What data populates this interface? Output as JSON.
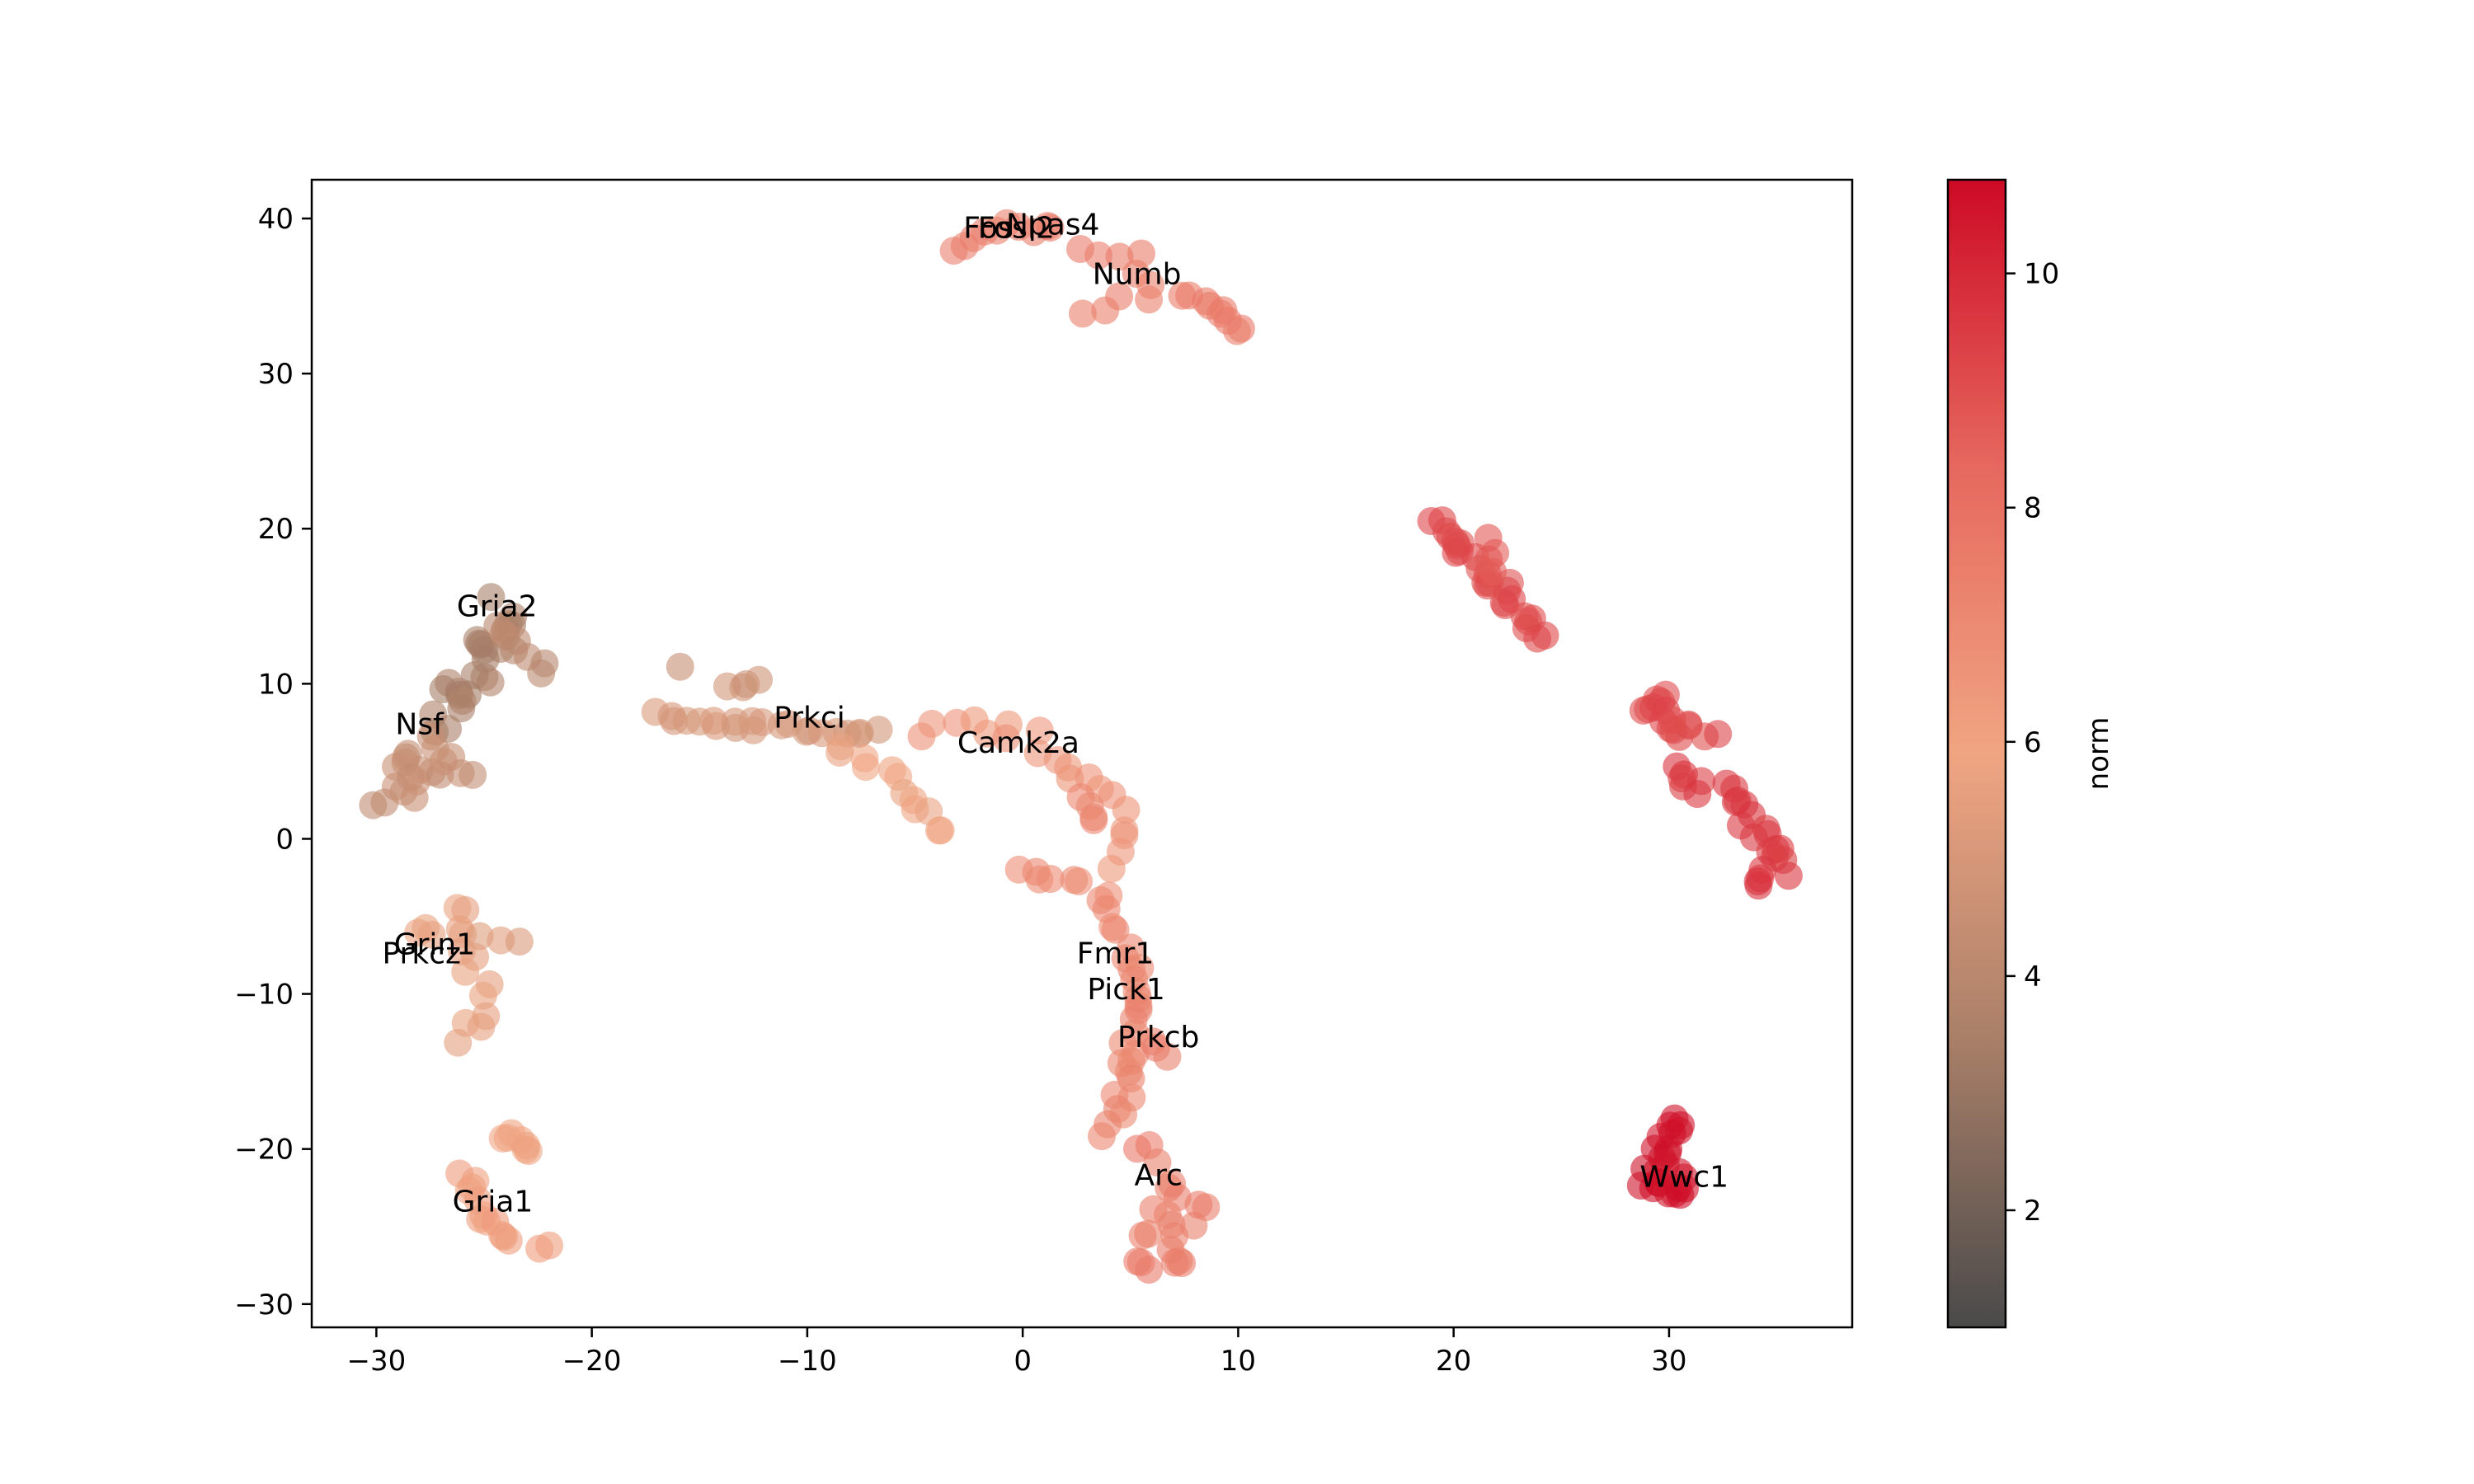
{
  "chart_data": {
    "type": "scatter",
    "title": "",
    "xlabel": "",
    "ylabel": "",
    "xlim": [
      -33,
      38.5
    ],
    "ylim": [
      -31.5,
      42.5
    ],
    "xticks": [
      -30,
      -20,
      -10,
      0,
      10,
      20,
      30
    ],
    "yticks": [
      -30,
      -20,
      -10,
      0,
      10,
      20,
      30,
      40
    ],
    "xtick_labels": [
      "−30",
      "−20",
      "−10",
      "0",
      "10",
      "20",
      "30"
    ],
    "ytick_labels": [
      "−30",
      "−20",
      "−10",
      "0",
      "10",
      "20",
      "30",
      "40"
    ],
    "grid": false,
    "colorbar": {
      "label": "norm",
      "range": [
        1.0,
        10.8
      ],
      "ticks": [
        2,
        4,
        6,
        8,
        10
      ],
      "tick_labels": [
        "2",
        "4",
        "6",
        "8",
        "10"
      ],
      "colormap": [
        "#4a4a4a",
        "#a97f68",
        "#f0a582",
        "#e6685e",
        "#cd0a25"
      ]
    },
    "point_alpha": 0.6,
    "annotations": [
      {
        "text": "Fosl2",
        "x": -0.3,
        "y": 39.4
      },
      {
        "text": "Fos",
        "x": -1.6,
        "y": 39.4
      },
      {
        "text": "Npas4",
        "x": 1.4,
        "y": 39.6
      },
      {
        "text": "Numb",
        "x": 5.3,
        "y": 36.4
      },
      {
        "text": "Gria2",
        "x": -24.4,
        "y": 15.0
      },
      {
        "text": "Nsf",
        "x": -28.0,
        "y": 7.4
      },
      {
        "text": "Prkci",
        "x": -9.9,
        "y": 7.8
      },
      {
        "text": "Camk2a",
        "x": -0.2,
        "y": 6.2
      },
      {
        "text": "Grin1",
        "x": -27.3,
        "y": -6.8
      },
      {
        "text": "Prkcz",
        "x": -27.9,
        "y": -7.4
      },
      {
        "text": "Fmr1",
        "x": 4.3,
        "y": -7.4
      },
      {
        "text": "Pick1",
        "x": 4.8,
        "y": -9.7
      },
      {
        "text": "Prkcb",
        "x": 6.3,
        "y": -12.8
      },
      {
        "text": "Arc",
        "x": 6.3,
        "y": -21.7
      },
      {
        "text": "Gria1",
        "x": -24.6,
        "y": -23.4
      },
      {
        "text": "Wwc1",
        "x": 30.7,
        "y": -21.8
      }
    ],
    "segments": [
      {
        "norm": 7.5,
        "n": 10,
        "jitter": 0.5,
        "path": [
          [
            -2.7,
            37.5
          ],
          [
            -1.5,
            39.5
          ],
          [
            0.5,
            39.5
          ],
          [
            1.2,
            39.0
          ]
        ]
      },
      {
        "norm": 7.5,
        "n": 10,
        "jitter": 0.5,
        "path": [
          [
            2.8,
            38.2
          ],
          [
            5.5,
            37.5
          ],
          [
            6.0,
            35.5
          ],
          [
            3.0,
            34.0
          ]
        ]
      },
      {
        "norm": 7.6,
        "n": 9,
        "jitter": 0.3,
        "path": [
          [
            7.5,
            35.0
          ],
          [
            9.0,
            34.2
          ],
          [
            10.2,
            32.8
          ]
        ]
      },
      {
        "norm": 3.5,
        "n": 24,
        "jitter": 0.8,
        "path": [
          [
            -24.0,
            14.8
          ],
          [
            -24.8,
            11.5
          ],
          [
            -26.0,
            9.5
          ],
          [
            -27.3,
            7.0
          ]
        ]
      },
      {
        "norm": 4.0,
        "n": 8,
        "jitter": 0.5,
        "path": [
          [
            -24.5,
            13.5
          ],
          [
            -23.3,
            12.0
          ],
          [
            -22.3,
            11.0
          ]
        ]
      },
      {
        "norm": 4.4,
        "n": 20,
        "jitter": 0.8,
        "path": [
          [
            -27.5,
            6.5
          ],
          [
            -28.5,
            4.0
          ],
          [
            -29.5,
            2.7
          ],
          [
            -26.5,
            4.5
          ],
          [
            -25.0,
            4.8
          ]
        ]
      },
      {
        "norm": 4.8,
        "n": 4,
        "jitter": 0.3,
        "path": [
          [
            -13.8,
            9.8
          ],
          [
            -12.2,
            10.5
          ]
        ]
      },
      {
        "norm": 4.3,
        "n": 1,
        "jitter": 0.0,
        "path": [
          [
            -15.9,
            11.1
          ]
        ]
      },
      {
        "norm": 4.9,
        "n": 22,
        "jitter": 0.4,
        "path": [
          [
            -17.0,
            7.9
          ],
          [
            -14.5,
            7.3
          ],
          [
            -12.0,
            7.2
          ],
          [
            -9.0,
            7.0
          ],
          [
            -7.0,
            7.3
          ]
        ]
      },
      {
        "norm": 5.8,
        "n": 12,
        "jitter": 0.4,
        "path": [
          [
            -8.8,
            5.8
          ],
          [
            -6.5,
            4.5
          ],
          [
            -5.0,
            2.5
          ],
          [
            -3.8,
            0.3
          ]
        ]
      },
      {
        "norm": 6.6,
        "n": 20,
        "jitter": 0.5,
        "path": [
          [
            -5.0,
            7.0
          ],
          [
            -2.5,
            7.3
          ],
          [
            0.5,
            6.5
          ],
          [
            2.5,
            4.5
          ],
          [
            4.3,
            2.0
          ],
          [
            4.5,
            0.0
          ],
          [
            4.5,
            -1.5
          ]
        ]
      },
      {
        "norm": 7.0,
        "n": 12,
        "jitter": 0.6,
        "path": [
          [
            0.0,
            -1.8
          ],
          [
            2.0,
            -3.0
          ],
          [
            3.8,
            -3.5
          ],
          [
            4.2,
            -5.0
          ],
          [
            4.8,
            -7.0
          ]
        ]
      },
      {
        "norm": 7.1,
        "n": 4,
        "jitter": 0.3,
        "path": [
          [
            2.5,
            2.5
          ],
          [
            3.5,
            1.0
          ]
        ]
      },
      {
        "norm": 5.6,
        "n": 16,
        "jitter": 0.7,
        "path": [
          [
            -28.5,
            -6.0
          ],
          [
            -26.5,
            -4.5
          ],
          [
            -25.7,
            -8.0
          ],
          [
            -25.0,
            -11.0
          ],
          [
            -26.0,
            -13.0
          ]
        ]
      },
      {
        "norm": 5.3,
        "n": 3,
        "jitter": 0.3,
        "path": [
          [
            -25.0,
            -6.0
          ],
          [
            -23.3,
            -6.6
          ]
        ]
      },
      {
        "norm": 5.9,
        "n": 7,
        "jitter": 0.4,
        "path": [
          [
            -24.0,
            -18.8
          ],
          [
            -23.0,
            -20.5
          ]
        ]
      },
      {
        "norm": 6.2,
        "n": 14,
        "jitter": 0.6,
        "path": [
          [
            -26.0,
            -21.5
          ],
          [
            -25.5,
            -24.5
          ],
          [
            -24.0,
            -26.0
          ],
          [
            -22.5,
            -26.3
          ]
        ]
      },
      {
        "norm": 7.2,
        "n": 22,
        "jitter": 0.4,
        "path": [
          [
            5.0,
            -7.5
          ],
          [
            5.5,
            -10.0
          ],
          [
            5.0,
            -13.0
          ],
          [
            4.8,
            -15.5
          ],
          [
            4.5,
            -18.0
          ],
          [
            4.0,
            -19.0
          ]
        ]
      },
      {
        "norm": 7.5,
        "n": 22,
        "jitter": 0.7,
        "path": [
          [
            5.5,
            -20.0
          ],
          [
            6.5,
            -22.0
          ],
          [
            6.5,
            -24.5
          ],
          [
            5.5,
            -26.0
          ],
          [
            6.2,
            -28.0
          ],
          [
            7.3,
            -26.5
          ],
          [
            8.0,
            -23.3
          ]
        ]
      },
      {
        "norm": 7.4,
        "n": 3,
        "jitter": 0.3,
        "path": [
          [
            6.0,
            -13.0
          ],
          [
            6.5,
            -14.0
          ]
        ]
      },
      {
        "norm": 9.1,
        "n": 26,
        "jitter": 0.5,
        "path": [
          [
            19.0,
            20.3
          ],
          [
            20.5,
            18.5
          ],
          [
            21.5,
            17.0
          ],
          [
            22.5,
            16.0
          ],
          [
            23.0,
            15.0
          ],
          [
            24.3,
            13.3
          ]
        ]
      },
      {
        "norm": 8.8,
        "n": 4,
        "jitter": 0.3,
        "path": [
          [
            21.5,
            19.3
          ],
          [
            22.0,
            17.5
          ]
        ]
      },
      {
        "norm": 9.2,
        "n": 16,
        "jitter": 0.5,
        "path": [
          [
            28.8,
            7.8
          ],
          [
            29.5,
            9.3
          ],
          [
            30.0,
            6.5
          ],
          [
            31.0,
            7.5
          ],
          [
            32.0,
            6.7
          ]
        ]
      },
      {
        "norm": 9.6,
        "n": 26,
        "jitter": 0.5,
        "path": [
          [
            30.0,
            4.5
          ],
          [
            31.5,
            3.5
          ],
          [
            33.0,
            2.8
          ],
          [
            34.0,
            1.0
          ],
          [
            35.0,
            -1.0
          ],
          [
            35.3,
            -2.0
          ],
          [
            33.8,
            -3.2
          ]
        ]
      },
      {
        "norm": 10.6,
        "n": 24,
        "jitter": 0.5,
        "path": [
          [
            30.7,
            -17.8
          ],
          [
            29.7,
            -19.3
          ],
          [
            29.3,
            -21.0
          ],
          [
            29.0,
            -22.5
          ],
          [
            30.0,
            -23.0
          ],
          [
            30.8,
            -22.5
          ],
          [
            30.3,
            -21.8
          ]
        ]
      }
    ]
  }
}
